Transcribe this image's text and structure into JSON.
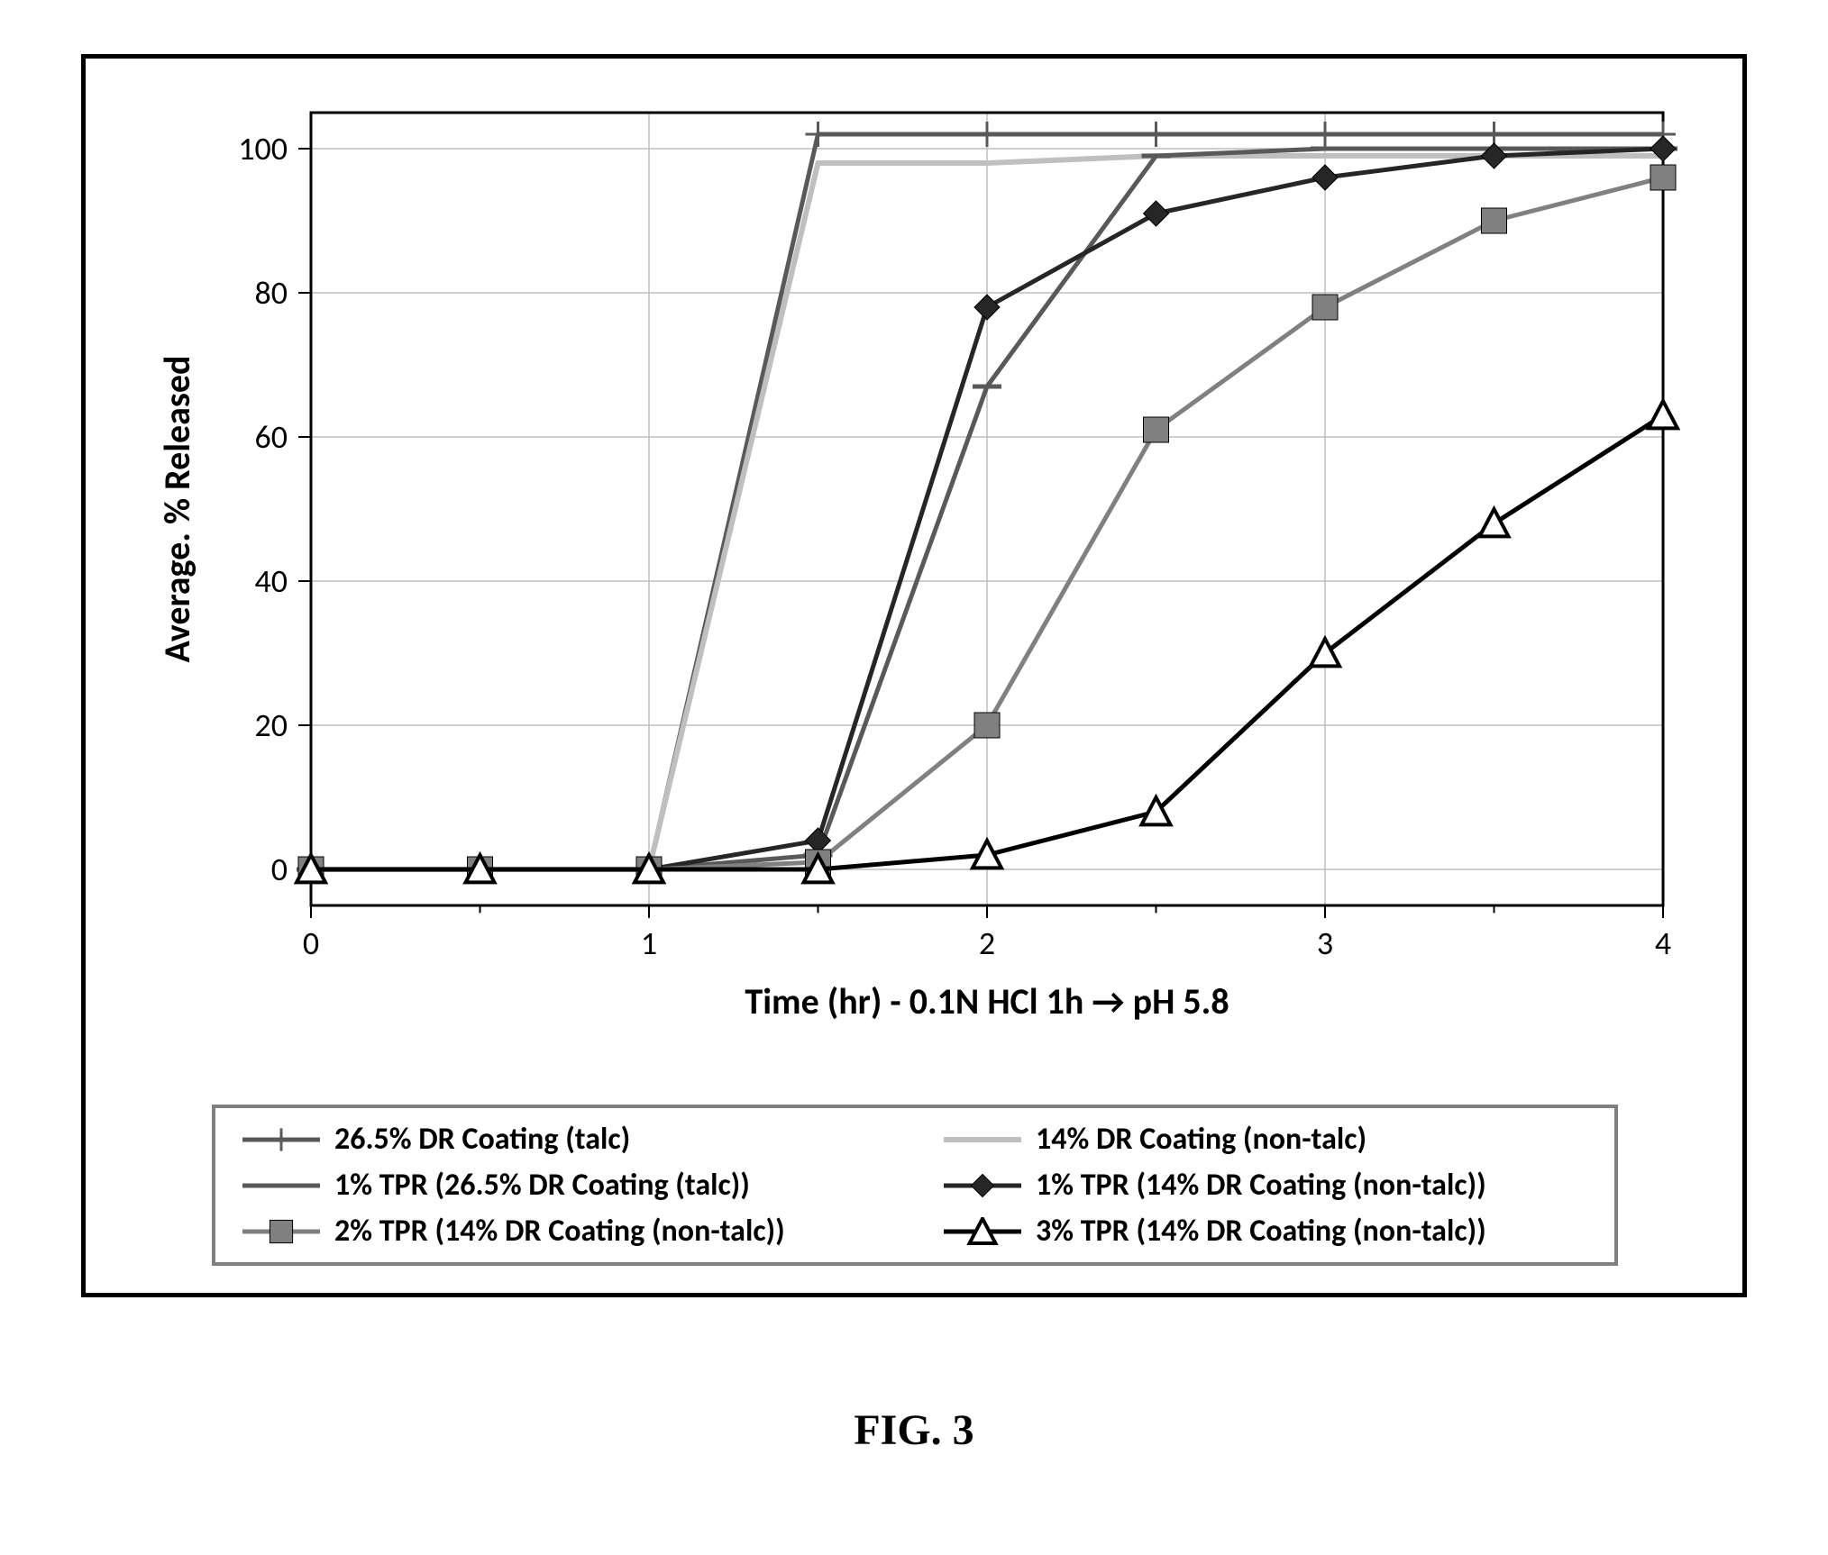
{
  "figure_caption": "FIG. 3",
  "chart": {
    "type": "line",
    "plot_bg": "#ffffff",
    "grid_color": "#bfbfbf",
    "axis_color": "#000000",
    "axis_width": 3,
    "grid_width": 1.5,
    "tick_len": 14,
    "xlabel": "Time (hr) - 0.1N HCl 1h → pH 5.8",
    "ylabel": "Average. % Released",
    "label_fontsize": 40,
    "label_fontweight": 700,
    "tick_fontsize": 36,
    "xlim": [
      0,
      4
    ],
    "ylim": [
      -5,
      105
    ],
    "xticks": [
      0,
      1,
      2,
      3,
      4
    ],
    "xtick_labels": [
      "0",
      "1",
      "2",
      "3",
      "4"
    ],
    "yticks": [
      0,
      20,
      40,
      60,
      80,
      100
    ],
    "ytick_labels": [
      "0",
      "20",
      "40",
      "60",
      "80",
      "100"
    ],
    "x_minor_step": 0.5,
    "legend_border_color": "#7f7f7f",
    "legend_fontsize": 34,
    "series": [
      {
        "key": "s1",
        "label": "26.5% DR Coating (talc)",
        "color": "#595959",
        "line_width": 5,
        "marker": "plus",
        "marker_size": 14,
        "x": [
          0,
          0.5,
          1,
          1.5,
          2,
          2.5,
          3,
          3.5,
          4
        ],
        "y": [
          0,
          0,
          0,
          102,
          102,
          102,
          102,
          102,
          102
        ]
      },
      {
        "key": "s2",
        "label": "14% DR Coating (non-talc)",
        "color": "#bfbfbf",
        "line_width": 6,
        "marker": "none",
        "marker_size": 0,
        "x": [
          0,
          0.5,
          1,
          1.5,
          2,
          2.5,
          3,
          3.5,
          4
        ],
        "y": [
          0,
          0,
          0,
          98,
          98,
          99,
          99,
          99,
          99
        ]
      },
      {
        "key": "s3",
        "label": "1% TPR (26.5% DR Coating (talc))",
        "color": "#595959",
        "line_width": 5,
        "marker": "dash",
        "marker_size": 16,
        "x": [
          0,
          0.5,
          1,
          1.5,
          2,
          2.5,
          3,
          3.5,
          4
        ],
        "y": [
          0,
          0,
          0,
          2,
          67,
          99,
          100,
          100,
          100
        ]
      },
      {
        "key": "s4",
        "label": "1% TPR (14% DR Coating (non-talc))",
        "color": "#262626",
        "line_width": 5,
        "marker": "diamond",
        "marker_size": 14,
        "x": [
          0,
          0.5,
          1,
          1.5,
          2,
          2.5,
          3,
          3.5,
          4
        ],
        "y": [
          0,
          0,
          0,
          4,
          78,
          91,
          96,
          99,
          100
        ]
      },
      {
        "key": "s5",
        "label": "2% TPR (14% DR Coating (non-talc))",
        "color": "#808080",
        "line_width": 5,
        "marker": "square",
        "marker_size": 14,
        "x": [
          0,
          0.5,
          1,
          1.5,
          2,
          2.5,
          3,
          3.5,
          4
        ],
        "y": [
          0,
          0,
          0,
          1,
          20,
          61,
          78,
          90,
          96
        ]
      },
      {
        "key": "s6",
        "label": "3% TPR (14% DR Coating (non-talc))",
        "color": "#000000",
        "line_width": 5,
        "marker": "triangle",
        "marker_size": 16,
        "x": [
          0,
          0.5,
          1,
          1.5,
          2,
          2.5,
          3,
          3.5,
          4
        ],
        "y": [
          0,
          0,
          0,
          0,
          2,
          8,
          30,
          48,
          63
        ]
      }
    ]
  }
}
